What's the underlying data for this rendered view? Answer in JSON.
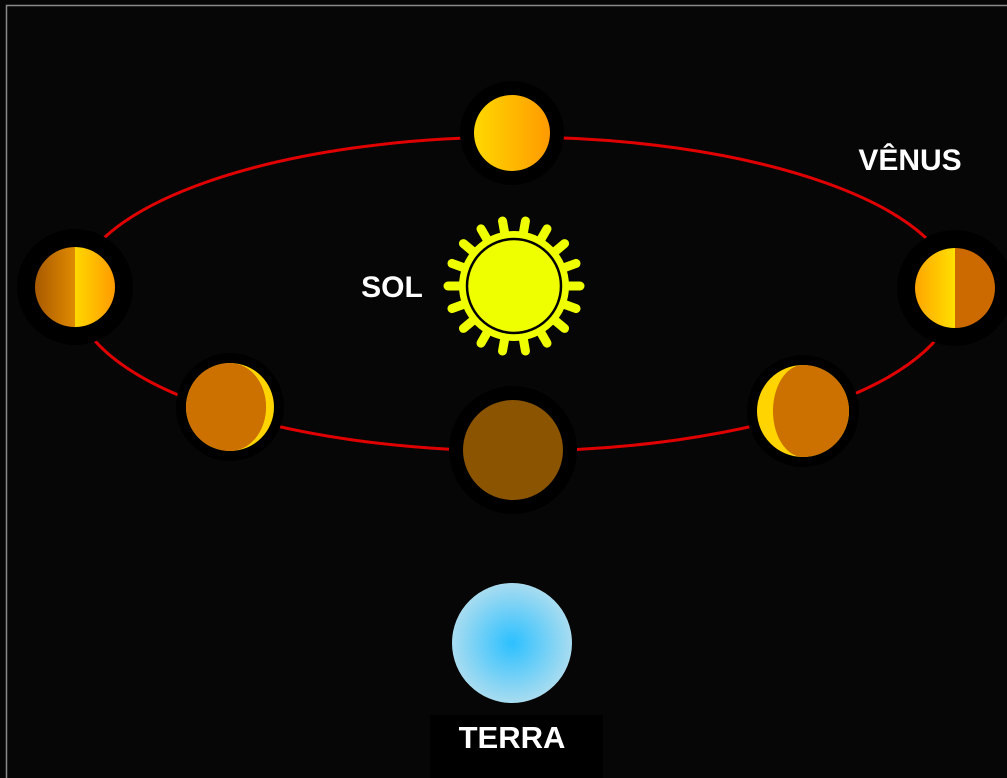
{
  "labels": {
    "venus": "VÊNUS",
    "sun": "SOL",
    "earth": "TERRA"
  }
}
